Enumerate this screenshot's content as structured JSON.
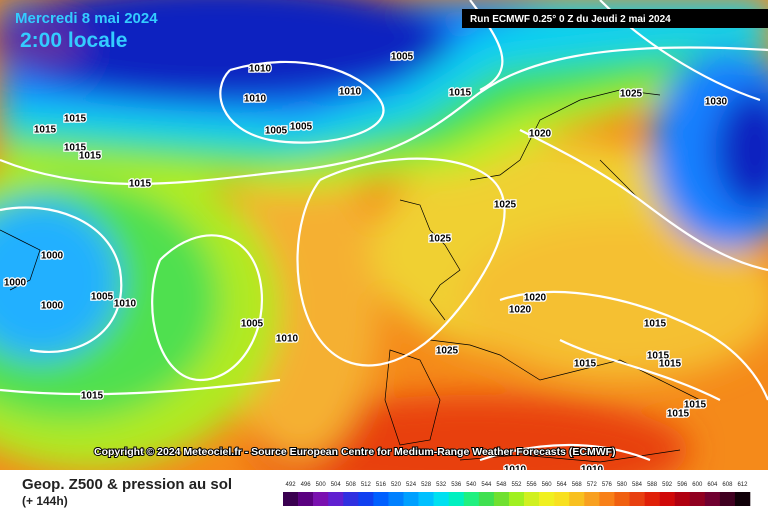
{
  "header": {
    "date": "Mercredi 8 mai 2024",
    "time": "2:00 locale",
    "run": "Run ECMWF 0.25° 0 Z du Jeudi 2 mai 2024"
  },
  "copyright": "Copyright © 2024 Meteociel.fr - Source European Centre for Medium-Range Weather Forecasts (ECMWF)",
  "footer": {
    "title": "Geop. Z500 & pression au sol",
    "lead": "(+ 144h)"
  },
  "isobar_labels": [
    1005,
    1010,
    1010,
    1010,
    1015,
    1005,
    1005,
    1015,
    1015,
    1015,
    1015,
    1015,
    1020,
    1025,
    1030,
    1025,
    1025,
    1000,
    1000,
    1000,
    1005,
    1010,
    1005,
    1010,
    1020,
    1020,
    1025,
    1015,
    1015,
    1015,
    1015,
    1015,
    1015,
    1015,
    1010,
    1010
  ],
  "legend": {
    "values": [
      492,
      496,
      500,
      504,
      508,
      512,
      516,
      520,
      524,
      528,
      532,
      536,
      540,
      544,
      548,
      552,
      556,
      560,
      564,
      568,
      572,
      576,
      580,
      584,
      588,
      592,
      596,
      600,
      604,
      608,
      612
    ],
    "colors": [
      "#3a0050",
      "#5a0080",
      "#7a10b0",
      "#6020d0",
      "#3030e0",
      "#1040f0",
      "#0060ff",
      "#0080ff",
      "#00a0ff",
      "#00c0ff",
      "#00e0f0",
      "#00f0c0",
      "#20f080",
      "#40e050",
      "#70e030",
      "#a0f020",
      "#d0f020",
      "#f0f020",
      "#f8e020",
      "#f8c020",
      "#f8a020",
      "#f88018",
      "#f06010",
      "#e84010",
      "#e02008",
      "#d00808",
      "#b00010",
      "#900020",
      "#700030",
      "#400020",
      "#100008"
    ]
  }
}
